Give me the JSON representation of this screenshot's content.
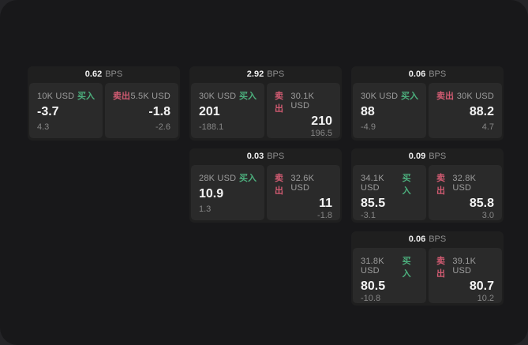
{
  "colors": {
    "buy_accent": "#4caf7d",
    "sell_accent": "#d25b72",
    "window_bg": "#18181a",
    "card_bg": "#1f1f1f",
    "panel_bg": "#2a2a2a"
  },
  "labels": {
    "bps_unit": "BPS",
    "buy": "买入",
    "sell": "卖出"
  },
  "cards": [
    {
      "bps": "0.62",
      "bps_unit": "BPS",
      "buy_amount": "10K USD",
      "buy_label": "买入",
      "buy_value": "-3.7",
      "buy_sub": "4.3",
      "sell_label": "卖出",
      "sell_amount": "5.5K USD",
      "sell_value": "-1.8",
      "sell_sub": "-2.6"
    },
    {
      "bps": "2.92",
      "bps_unit": "BPS",
      "buy_amount": "30K USD",
      "buy_label": "买入",
      "buy_value": "201",
      "buy_sub": "-188.1",
      "sell_label": "卖出",
      "sell_amount": "30.1K USD",
      "sell_value": "210",
      "sell_sub": "196.5"
    },
    {
      "bps": "0.06",
      "bps_unit": "BPS",
      "buy_amount": "30K USD",
      "buy_label": "买入",
      "buy_value": "88",
      "buy_sub": "-4.9",
      "sell_label": "卖出",
      "sell_amount": "30K USD",
      "sell_value": "88.2",
      "sell_sub": "4.7"
    },
    {
      "bps": "0.03",
      "bps_unit": "BPS",
      "buy_amount": "28K USD",
      "buy_label": "买入",
      "buy_value": "10.9",
      "buy_sub": "1.3",
      "sell_label": "卖出",
      "sell_amount": "32.6K USD",
      "sell_value": "11",
      "sell_sub": "-1.8"
    },
    {
      "bps": "0.09",
      "bps_unit": "BPS",
      "buy_amount": "34.1K USD",
      "buy_label": "买入",
      "buy_value": "85.5",
      "buy_sub": "-3.1",
      "sell_label": "卖出",
      "sell_amount": "32.8K USD",
      "sell_value": "85.8",
      "sell_sub": "3.0"
    },
    {
      "bps": "0.06",
      "bps_unit": "BPS",
      "buy_amount": "31.8K USD",
      "buy_label": "买入",
      "buy_value": "80.5",
      "buy_sub": "-10.8",
      "sell_label": "卖出",
      "sell_amount": "39.1K USD",
      "sell_value": "80.7",
      "sell_sub": "10.2"
    }
  ]
}
